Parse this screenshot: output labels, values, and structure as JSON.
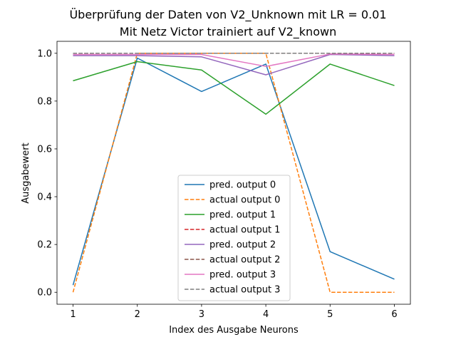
{
  "chart_data": {
    "type": "line",
    "title": "Überprüfung der Daten von V2_Unknown mit LR = 0.01",
    "subtitle": "Mit Netz Victor trainiert auf V2_known",
    "xlabel": "Index des Ausgabe Neurons",
    "ylabel": "Ausgabewert",
    "x": [
      1,
      2,
      3,
      4,
      5,
      6
    ],
    "xticks": [
      "1",
      "2",
      "3",
      "4",
      "5",
      "6"
    ],
    "yticks": [
      "0.0",
      "0.2",
      "0.4",
      "0.6",
      "0.8",
      "1.0"
    ],
    "xlim": [
      0.75,
      6.25
    ],
    "ylim": [
      -0.05,
      1.05
    ],
    "grid": false,
    "legend_position": "lower-center",
    "series": [
      {
        "name": "pred. output 0",
        "values": [
          0.03,
          0.98,
          0.84,
          0.955,
          0.17,
          0.055
        ],
        "color": "#1f77b4",
        "style": "solid"
      },
      {
        "name": "actual output 0",
        "values": [
          0.0,
          1.0,
          1.0,
          1.0,
          0.0,
          0.0
        ],
        "color": "#ff7f0e",
        "style": "dashed"
      },
      {
        "name": "pred. output 1",
        "values": [
          0.885,
          0.965,
          0.93,
          0.745,
          0.955,
          0.865
        ],
        "color": "#2ca02c",
        "style": "solid"
      },
      {
        "name": "actual output 1",
        "values": [
          1.0,
          1.0,
          1.0,
          1.0,
          1.0,
          1.0
        ],
        "color": "#d62728",
        "style": "dashed"
      },
      {
        "name": "pred. output 2",
        "values": [
          0.99,
          0.99,
          0.985,
          0.91,
          0.995,
          0.99
        ],
        "color": "#9467bd",
        "style": "solid"
      },
      {
        "name": "actual output 2",
        "values": [
          1.0,
          1.0,
          1.0,
          1.0,
          1.0,
          1.0
        ],
        "color": "#8c564b",
        "style": "dashed"
      },
      {
        "name": "pred. output 3",
        "values": [
          0.995,
          0.995,
          0.995,
          0.945,
          0.997,
          0.995
        ],
        "color": "#e377c2",
        "style": "solid"
      },
      {
        "name": "actual output 3",
        "values": [
          1.0,
          1.0,
          1.0,
          1.0,
          1.0,
          1.0
        ],
        "color": "#7f7f7f",
        "style": "dashed"
      }
    ]
  }
}
